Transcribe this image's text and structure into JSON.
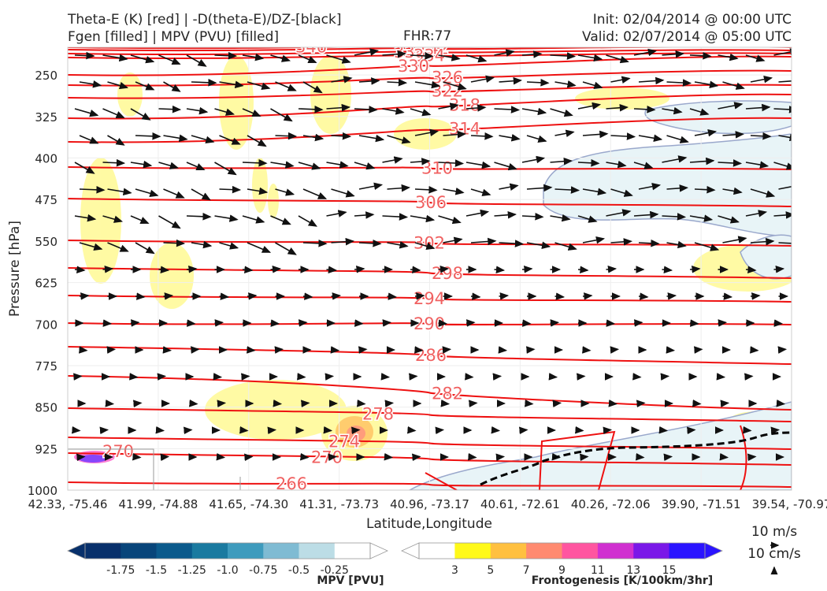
{
  "header": {
    "title_line1": "Theta-E (K) [red] | -D(theta-E)/DZ-[black]",
    "title_line2": "Fgen [filled] | MPV (PVU) [filled]",
    "fhr": "FHR:77",
    "init": "Init: 02/04/2014 @ 00:00 UTC",
    "valid": "Valid: 02/07/2014 @ 05:00 UTC"
  },
  "chart_data": {
    "type": "cross-section",
    "xlabel": "Latitude,Longitude",
    "ylabel": "Pressure [hPa]",
    "x_ticks": [
      "42.33, -75.46",
      "41.99, -74.88",
      "41.65, -74.30",
      "41.31, -73.73",
      "40.96, -73.17",
      "40.61, -72.61",
      "40.26, -72.06",
      "39.90, -71.51",
      "39.54, -70.97"
    ],
    "y_ticks": [
      250,
      325,
      400,
      475,
      550,
      625,
      700,
      775,
      850,
      925,
      1000
    ],
    "ylim": [
      1000,
      200
    ],
    "theta_e_contours": [
      {
        "label": "270",
        "levels": [
          0,
          0,
          1,
          1
        ]
      },
      {
        "label": "266"
      },
      {
        "label": "274"
      },
      {
        "label": "278"
      },
      {
        "label": "282"
      },
      {
        "label": "286"
      },
      {
        "label": "290"
      },
      {
        "label": "294"
      },
      {
        "label": "298"
      },
      {
        "label": "302"
      },
      {
        "label": "306"
      },
      {
        "label": "310"
      },
      {
        "label": "314"
      },
      {
        "label": "318"
      },
      {
        "label": "322"
      },
      {
        "label": "326"
      },
      {
        "label": "330"
      },
      {
        "label": "334"
      },
      {
        "label": "338"
      },
      {
        "label": "342"
      },
      {
        "label": "346"
      }
    ],
    "mpv_colorbar": {
      "title": "MPV [PVU]",
      "ticks": [
        "-1.75",
        "-1.5",
        "-1.25",
        "-1.0",
        "-0.75",
        "-0.5",
        "-0.25"
      ],
      "colors": [
        "#08306b",
        "#08457a",
        "#0b5a8c",
        "#1a7aa0",
        "#3e9bbd",
        "#7fbbd3",
        "#bcdde6",
        "#ffffff"
      ]
    },
    "fgen_colorbar": {
      "title": "Frontogenesis [K/100km/3hr]",
      "ticks": [
        "3",
        "5",
        "7",
        "9",
        "11",
        "13",
        "15"
      ],
      "colors": [
        "#ffffff",
        "#fff91a",
        "#ffc040",
        "#ff8a70",
        "#ff55a0",
        "#d030d0",
        "#7a18e8",
        "#2a14ff"
      ]
    },
    "wind_key": {
      "horizontal": "10 m/s",
      "vertical": "10 cm/s"
    }
  }
}
